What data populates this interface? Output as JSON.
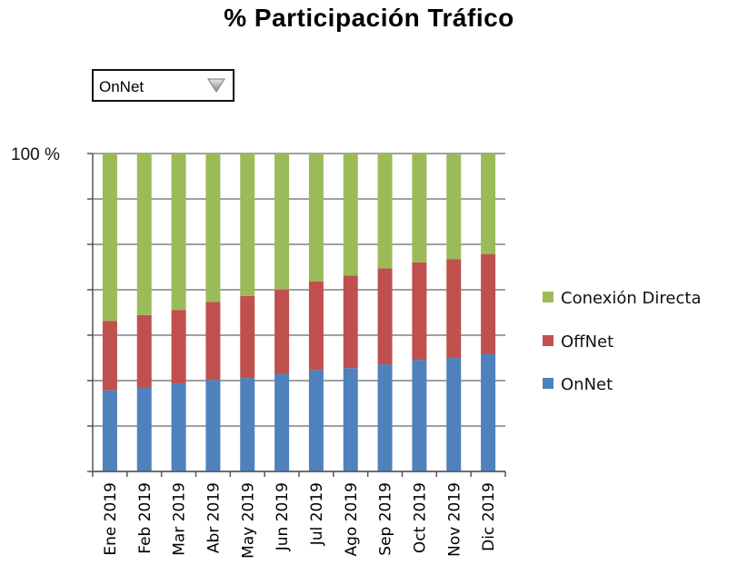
{
  "page": {
    "title": "% Participación Tráfico"
  },
  "filter": {
    "selected": "OnNet",
    "icon": "dropdown-arrow-icon"
  },
  "chart_data": {
    "type": "bar",
    "stacked": true,
    "title": "% Participación Tráfico",
    "categories": [
      "Ene 2019",
      "Feb 2019",
      "Mar 2019",
      "Abr 2019",
      "May 2019",
      "Jun 2019",
      "Jul 2019",
      "Ago 2019",
      "Sep 2019",
      "Oct 2019",
      "Nov 2019",
      "Dic 2019"
    ],
    "series": [
      {
        "name": "OnNet",
        "color": "#4f81bd",
        "values": [
          25.5,
          26.3,
          27.7,
          28.8,
          29.4,
          30.6,
          31.9,
          32.5,
          33.7,
          35.1,
          35.7,
          37.0
        ]
      },
      {
        "name": "OffNet",
        "color": "#c0504d",
        "values": [
          21.8,
          22.9,
          23.1,
          24.5,
          25.8,
          26.6,
          27.9,
          29.1,
          30.2,
          30.7,
          31.1,
          31.4
        ]
      },
      {
        "name": "Conexión Directa",
        "color": "#9bbb59",
        "values": [
          52.7,
          50.8,
          49.2,
          46.7,
          44.8,
          42.8,
          40.2,
          38.4,
          36.1,
          34.2,
          32.9,
          31.6
        ]
      }
    ],
    "yaxis": {
      "min": 0,
      "max": 100,
      "unit": "%",
      "labels": [
        "100 %"
      ]
    },
    "grid": true,
    "legend_position": "right"
  }
}
